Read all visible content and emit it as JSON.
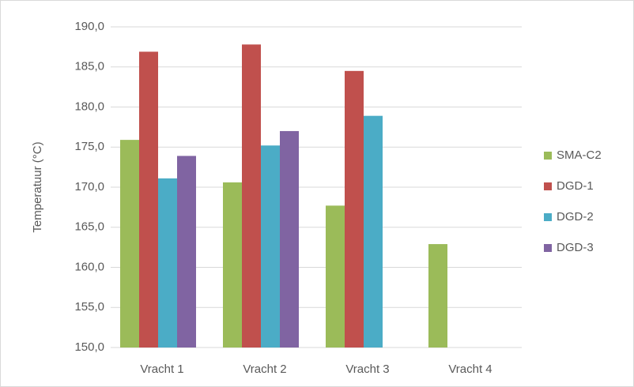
{
  "chart_data": {
    "type": "bar",
    "y_label": "Temperatuur (°C)",
    "categories": [
      "Vracht 1",
      "Vracht 2",
      "Vracht 3",
      "Vracht 4"
    ],
    "series": [
      {
        "name": "SMA-C2",
        "color": "#9bbb59",
        "values": [
          175.9,
          170.6,
          167.7,
          162.9
        ]
      },
      {
        "name": "DGD-1",
        "color": "#c0504d",
        "values": [
          186.9,
          187.8,
          184.5,
          null
        ]
      },
      {
        "name": "DGD-2",
        "color": "#4bacc6",
        "values": [
          171.1,
          175.2,
          178.9,
          null
        ]
      },
      {
        "name": "DGD-3",
        "color": "#8064a2",
        "values": [
          173.9,
          177.0,
          null,
          null
        ]
      }
    ],
    "ylim": [
      150,
      190
    ],
    "yticks": [
      {
        "value": 150,
        "label": "150,0"
      },
      {
        "value": 155,
        "label": "155,0"
      },
      {
        "value": 160,
        "label": "160,0"
      },
      {
        "value": 165,
        "label": "165,0"
      },
      {
        "value": 170,
        "label": "170,0"
      },
      {
        "value": 175,
        "label": "175,0"
      },
      {
        "value": 180,
        "label": "180,0"
      },
      {
        "value": 185,
        "label": "185,0"
      },
      {
        "value": 190,
        "label": "190,0"
      }
    ],
    "grid": true,
    "legend": "right"
  }
}
